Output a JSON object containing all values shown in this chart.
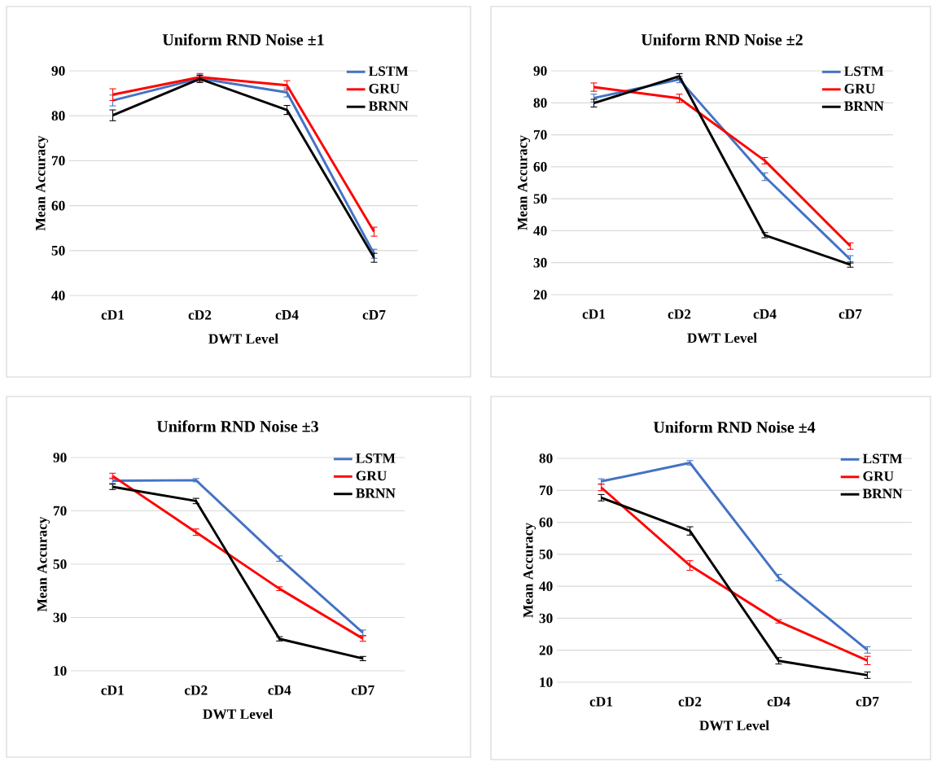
{
  "chart_data": [
    {
      "type": "line",
      "title": "Uniform  RND Noise ±1",
      "xlabel": "DWT Level",
      "ylabel": "Mean Accuracy",
      "categories": [
        "cD1",
        "cD2",
        "cD4",
        "cD7"
      ],
      "ylim": [
        40,
        90
      ],
      "yticks": [
        40,
        50,
        60,
        70,
        80,
        90
      ],
      "grid": "y",
      "legend": "top right",
      "line_style": "solid",
      "series": [
        {
          "name": "LSTM",
          "color": "#4472c4",
          "values": [
            83.4,
            88.3,
            85.2,
            49.3
          ],
          "errors": [
            1.2,
            0.8,
            1,
            1
          ]
        },
        {
          "name": "GRU",
          "color": "#ff0000",
          "values": [
            84.7,
            88.6,
            86.8,
            54.2
          ],
          "errors": [
            1.3,
            0.8,
            1,
            1
          ]
        },
        {
          "name": "BRNN",
          "color": "#000000",
          "values": [
            80.1,
            88.2,
            81.3,
            48.4
          ],
          "errors": [
            1.2,
            0.8,
            1,
            1
          ]
        }
      ]
    },
    {
      "type": "line",
      "title": "Uniform  RND Noise ±2",
      "xlabel": "DWT Level",
      "ylabel": "Mean Accuracy",
      "categories": [
        "cD1",
        "cD2",
        "cD4",
        "cD7"
      ],
      "ylim": [
        20,
        90
      ],
      "yticks": [
        20,
        30,
        40,
        50,
        60,
        70,
        80,
        90
      ],
      "grid": "y",
      "legend": "top right",
      "line_style": "solid",
      "series": [
        {
          "name": "LSTM",
          "color": "#4472c4",
          "values": [
            81.5,
            87.3,
            56.9,
            31.0
          ],
          "errors": [
            1.2,
            1,
            1.2,
            1.2
          ]
        },
        {
          "name": "GRU",
          "color": "#ff0000",
          "values": [
            84.9,
            81.4,
            61.9,
            35.2
          ],
          "errors": [
            1.3,
            1.3,
            1,
            1
          ]
        },
        {
          "name": "BRNN",
          "color": "#000000",
          "values": [
            79.9,
            88.3,
            38.6,
            29.4
          ],
          "errors": [
            1.2,
            0.8,
            0.8,
            0.8
          ]
        }
      ]
    },
    {
      "type": "line",
      "title": "Uniform  RND Noise ±3",
      "xlabel": "DWT Level",
      "ylabel": "Mean Accuracy",
      "categories": [
        "cD1",
        "cD2",
        "cD4",
        "cD7"
      ],
      "ylim": [
        10,
        90
      ],
      "yticks": [
        10,
        30,
        50,
        70,
        90
      ],
      "grid": "y",
      "legend": "top right",
      "line_style": "solid",
      "series": [
        {
          "name": "LSTM",
          "color": "#4472c4",
          "values": [
            81.3,
            81.5,
            52.1,
            24.3
          ],
          "errors": [
            1,
            0.6,
            1,
            1
          ]
        },
        {
          "name": "GRU",
          "color": "#ff0000",
          "values": [
            83.1,
            62.0,
            40.8,
            22.1
          ],
          "errors": [
            1,
            1.2,
            0.7,
            1
          ]
        },
        {
          "name": "BRNN",
          "color": "#000000",
          "values": [
            79.0,
            73.7,
            22.0,
            14.6
          ],
          "errors": [
            1,
            1,
            0.8,
            0.8
          ]
        }
      ]
    },
    {
      "type": "line",
      "title": "Uniform  RND Noise ±4",
      "xlabel": "DWT Level",
      "ylabel": "Mean Accuracy",
      "categories": [
        "cD1",
        "cD2",
        "cD4",
        "cD7"
      ],
      "ylim": [
        10,
        80
      ],
      "yticks": [
        10,
        20,
        30,
        40,
        50,
        60,
        70,
        80
      ],
      "grid": "y",
      "legend": "top right",
      "line_style": "solid",
      "series": [
        {
          "name": "LSTM",
          "color": "#4472c4",
          "values": [
            72.8,
            78.6,
            42.7,
            20.1
          ],
          "errors": [
            0.8,
            0.7,
            1,
            1
          ]
        },
        {
          "name": "GRU",
          "color": "#ff0000",
          "values": [
            70.9,
            46.5,
            29.0,
            16.8
          ],
          "errors": [
            1,
            1.5,
            0.5,
            1.3
          ]
        },
        {
          "name": "BRNN",
          "color": "#000000",
          "values": [
            67.7,
            57.3,
            16.7,
            12.2
          ],
          "errors": [
            1,
            1.3,
            1,
            1
          ]
        }
      ]
    }
  ]
}
